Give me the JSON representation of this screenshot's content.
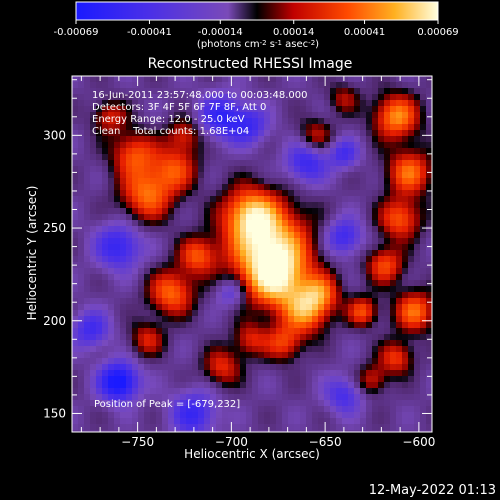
{
  "chart_data": {
    "type": "heatmap",
    "title": "Reconstructed RHESSI Image",
    "xlabel": "Heliocentric X (arcsec)",
    "ylabel": "Heliocentric Y (arcsec)",
    "xlim": [
      -785,
      -593
    ],
    "ylim": [
      140,
      332
    ],
    "xticks": [
      -750,
      -700,
      -650,
      -600
    ],
    "yticks": [
      150,
      200,
      250,
      300
    ],
    "colorbar": {
      "ticks": [
        "-0.00069",
        "-0.00041",
        "-0.00014",
        "0.00014",
        "0.00041",
        "0.00069"
      ],
      "tick_values": [
        -0.00069,
        -0.00041,
        -0.00014,
        0.00014,
        0.00041,
        0.00069
      ],
      "range": [
        -0.00069,
        0.00069
      ],
      "unit_parts": [
        "(photons cm",
        "-2",
        " s",
        "-1",
        " asec",
        "-2",
        ")"
      ]
    },
    "colors": {
      "low": "#1a1aff",
      "mid_low": "#8a4fd8",
      "zero": "#000000",
      "mid_high": "#ff3000",
      "high": "#ffffe0"
    },
    "annotations": [
      "16-Jun-2011 23:57:48.000 to 00:03:48.000",
      "Detectors: 3F 4F 5F 6F 7F 8F, Att 0",
      "Energy Range: 12.0 - 25.0 keV",
      "Clean    Total counts: 1.68E+04"
    ],
    "peak_label": "Position of Peak = [-679,232]",
    "peak": [
      -679,
      232
    ],
    "footer": "12-May-2022 01:13"
  }
}
